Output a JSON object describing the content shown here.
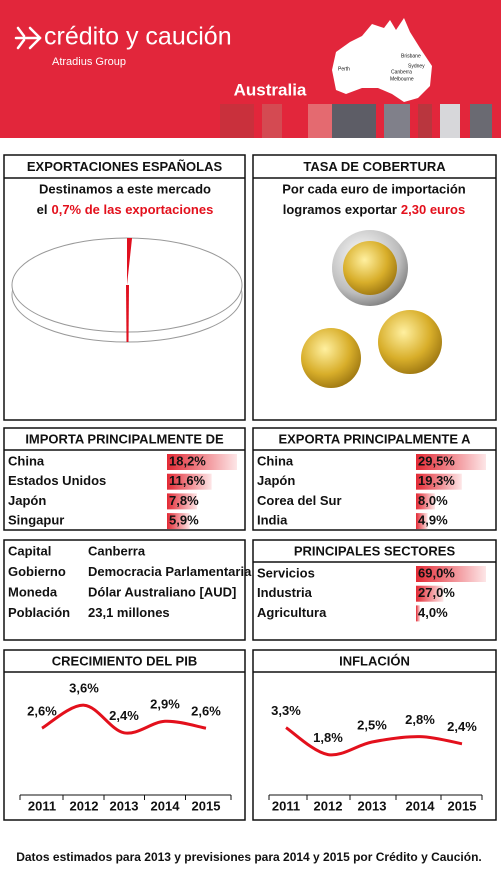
{
  "header": {
    "brand": "crédito y caución",
    "group": "Atradius Group",
    "country": "Australia",
    "map_cities": [
      "Perth",
      "Brisbane",
      "Sydney",
      "Canberra",
      "Melbourne"
    ]
  },
  "exports_share": {
    "title": "EXPORTACIONES ESPAÑOLAS",
    "line1": "Destinamos a este mercado",
    "line2_prefix": "el",
    "line2_highlight": "0,7% de las exportaciones",
    "chart_data": {
      "type": "pie",
      "values": [
        0.7,
        99.3
      ],
      "colors": [
        "#e0101f",
        "#ffffff"
      ]
    }
  },
  "coverage": {
    "title": "TASA DE COBERTURA",
    "line1": "Por cada euro de importación",
    "line2_prefix": "logramos exportar",
    "line2_highlight": "2,30 euros"
  },
  "imports": {
    "title": "IMPORTA PRINCIPALMENTE DE",
    "rows": [
      {
        "name": "China",
        "value": 18.2,
        "label": "18,2%"
      },
      {
        "name": "Estados Unidos",
        "value": 11.6,
        "label": "11,6%"
      },
      {
        "name": "Japón",
        "value": 7.8,
        "label": "7,8%"
      },
      {
        "name": "Singapur",
        "value": 5.9,
        "label": "5,9%"
      }
    ]
  },
  "exports": {
    "title": "EXPORTA PRINCIPALMENTE A",
    "rows": [
      {
        "name": "China",
        "value": 29.5,
        "label": "29,5%"
      },
      {
        "name": "Japón",
        "value": 19.3,
        "label": "19,3%"
      },
      {
        "name": "Corea del Sur",
        "value": 8.0,
        "label": "8,0%"
      },
      {
        "name": "India",
        "value": 4.9,
        "label": "4,9%"
      }
    ]
  },
  "facts": {
    "rows": [
      [
        "Capital",
        "Canberra"
      ],
      [
        "Gobierno",
        "Democracia Parlamentaria"
      ],
      [
        "Moneda",
        "Dólar Australiano [AUD]"
      ],
      [
        "Población",
        "23,1 millones"
      ]
    ]
  },
  "sectors": {
    "title": "PRINCIPALES SECTORES",
    "rows": [
      {
        "name": "Servicios",
        "value": 69.0,
        "label": "69,0%"
      },
      {
        "name": "Industria",
        "value": 27.0,
        "label": "27,0%"
      },
      {
        "name": "Agricultura",
        "value": 4.0,
        "label": "4,0%"
      }
    ]
  },
  "chart_data": [
    {
      "type": "line",
      "title": "CRECIMIENTO DEL PIB",
      "categories": [
        "2011",
        "2012",
        "2013",
        "2014",
        "2015"
      ],
      "values": [
        2.6,
        3.6,
        2.4,
        2.9,
        2.6
      ],
      "value_labels": [
        "2,6%",
        "3,6%",
        "2,4%",
        "2,9%",
        "2,6%"
      ],
      "color": "#e3101c",
      "ylim": [
        0,
        5
      ]
    },
    {
      "type": "line",
      "title": "INFLACIÓN",
      "categories": [
        "2011",
        "2012",
        "2013",
        "2014",
        "2015"
      ],
      "values": [
        3.3,
        1.8,
        2.5,
        2.8,
        2.4
      ],
      "value_labels": [
        "3,3%",
        "1,8%",
        "2,5%",
        "2,8%",
        "2,4%"
      ],
      "color": "#e3101c",
      "ylim": [
        0,
        5
      ]
    }
  ],
  "footer": "Datos estimados para 2013 y previsiones para 2014 y 2015 por Crédito y Caución."
}
